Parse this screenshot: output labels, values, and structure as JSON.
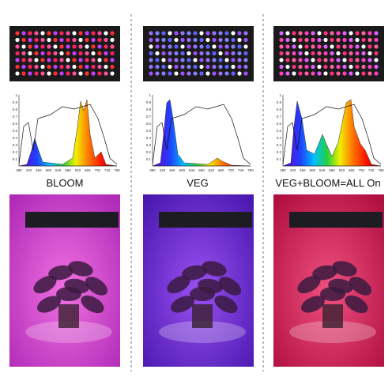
{
  "panels": [
    {
      "label": "BLOOM"
    },
    {
      "label": "VEG"
    },
    {
      "label": "VEG+BLOOM=ALL On"
    }
  ],
  "spectrum_axis": {
    "y": [
      "1",
      "0.9",
      "0.8",
      "0.7",
      "0.6",
      "0.5",
      "0.4",
      "0.3",
      "0.2",
      "0.1"
    ],
    "x": [
      "380",
      "420",
      "460",
      "500",
      "540",
      "580",
      "620",
      "660",
      "700",
      "740",
      "780"
    ]
  }
}
